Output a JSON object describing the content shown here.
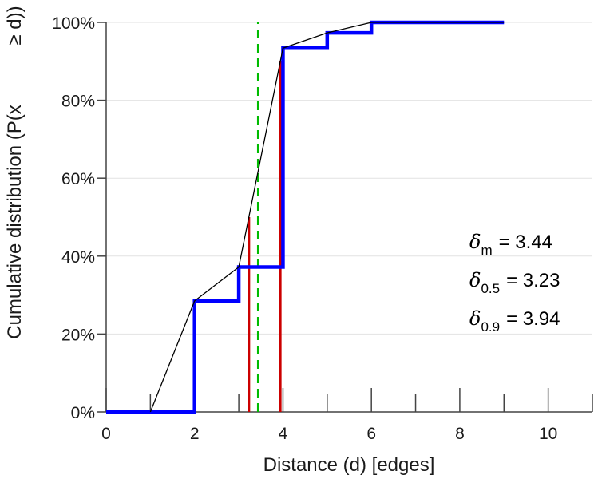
{
  "chart_data": {
    "type": "line",
    "title": "",
    "xlabel": "Distance (d) [edges]",
    "ylabel_part1": "Cumulative distribution (P(x",
    "ylabel_part2": "≥ d))",
    "xlim": [
      0,
      11
    ],
    "ylim": [
      0,
      100
    ],
    "x_ticks": [
      0,
      2,
      4,
      6,
      8,
      10
    ],
    "y_ticks": [
      0,
      20,
      40,
      60,
      80,
      100
    ],
    "x_tick_labels": [
      "0",
      "2",
      "4",
      "6",
      "8",
      "10"
    ],
    "y_tick_labels": [
      "0%",
      "20%",
      "40%",
      "60%",
      "80%",
      "100%"
    ],
    "grid": "horizontal",
    "series": [
      {
        "style": "step",
        "color": "#0000ff",
        "x": [
          0,
          2,
          3,
          4,
          5,
          6,
          7,
          8,
          9
        ],
        "y": [
          0,
          28.5,
          37.2,
          93.4,
          97.3,
          100,
          100,
          100,
          100
        ]
      },
      {
        "style": "line",
        "color": "#000000",
        "x": [
          1,
          2,
          3,
          4,
          5,
          6,
          7,
          8,
          9
        ],
        "y": [
          0,
          28.5,
          37.2,
          93.4,
          97.3,
          100,
          100,
          100,
          100
        ]
      }
    ],
    "vertical_markers": [
      {
        "x": 3.23,
        "y_top": 50,
        "color": "#cc0000",
        "style": "solid"
      },
      {
        "x": 3.94,
        "y_top": 90,
        "color": "#cc0000",
        "style": "solid"
      },
      {
        "x": 3.44,
        "y_top": 100,
        "color": "#00bb00",
        "style": "dashed"
      }
    ],
    "annotations": [
      {
        "symbol": "δ",
        "sub": "m",
        "text": "= 3.44"
      },
      {
        "symbol": "δ",
        "sub": "0.5",
        "text": "= 3.23"
      },
      {
        "symbol": "δ",
        "sub": "0.9",
        "text": "= 3.94"
      }
    ]
  }
}
